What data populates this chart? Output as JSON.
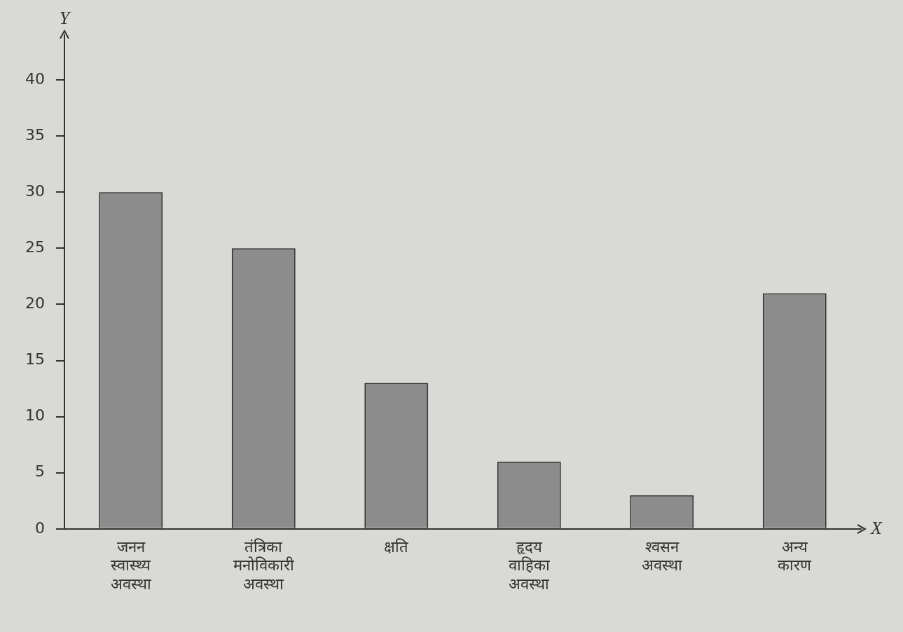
{
  "chart_data": {
    "type": "bar",
    "xlabel": "X",
    "ylabel": "Y",
    "categories": [
      "जनन स्वास्थ्य अवस्था",
      "तंत्रिका मनोविकारी अवस्था",
      "क्षति",
      "हृदय वाहिका अवस्था",
      "श्वसन अवस्था",
      "अन्य कारण"
    ],
    "values": [
      30,
      25,
      13,
      6,
      3,
      21
    ],
    "color": "#8c8c8c",
    "ylim": [
      0,
      44
    ],
    "yticks": [
      0,
      5,
      10,
      15,
      20,
      25,
      30,
      35,
      40
    ],
    "grid": false,
    "legend": false
  }
}
